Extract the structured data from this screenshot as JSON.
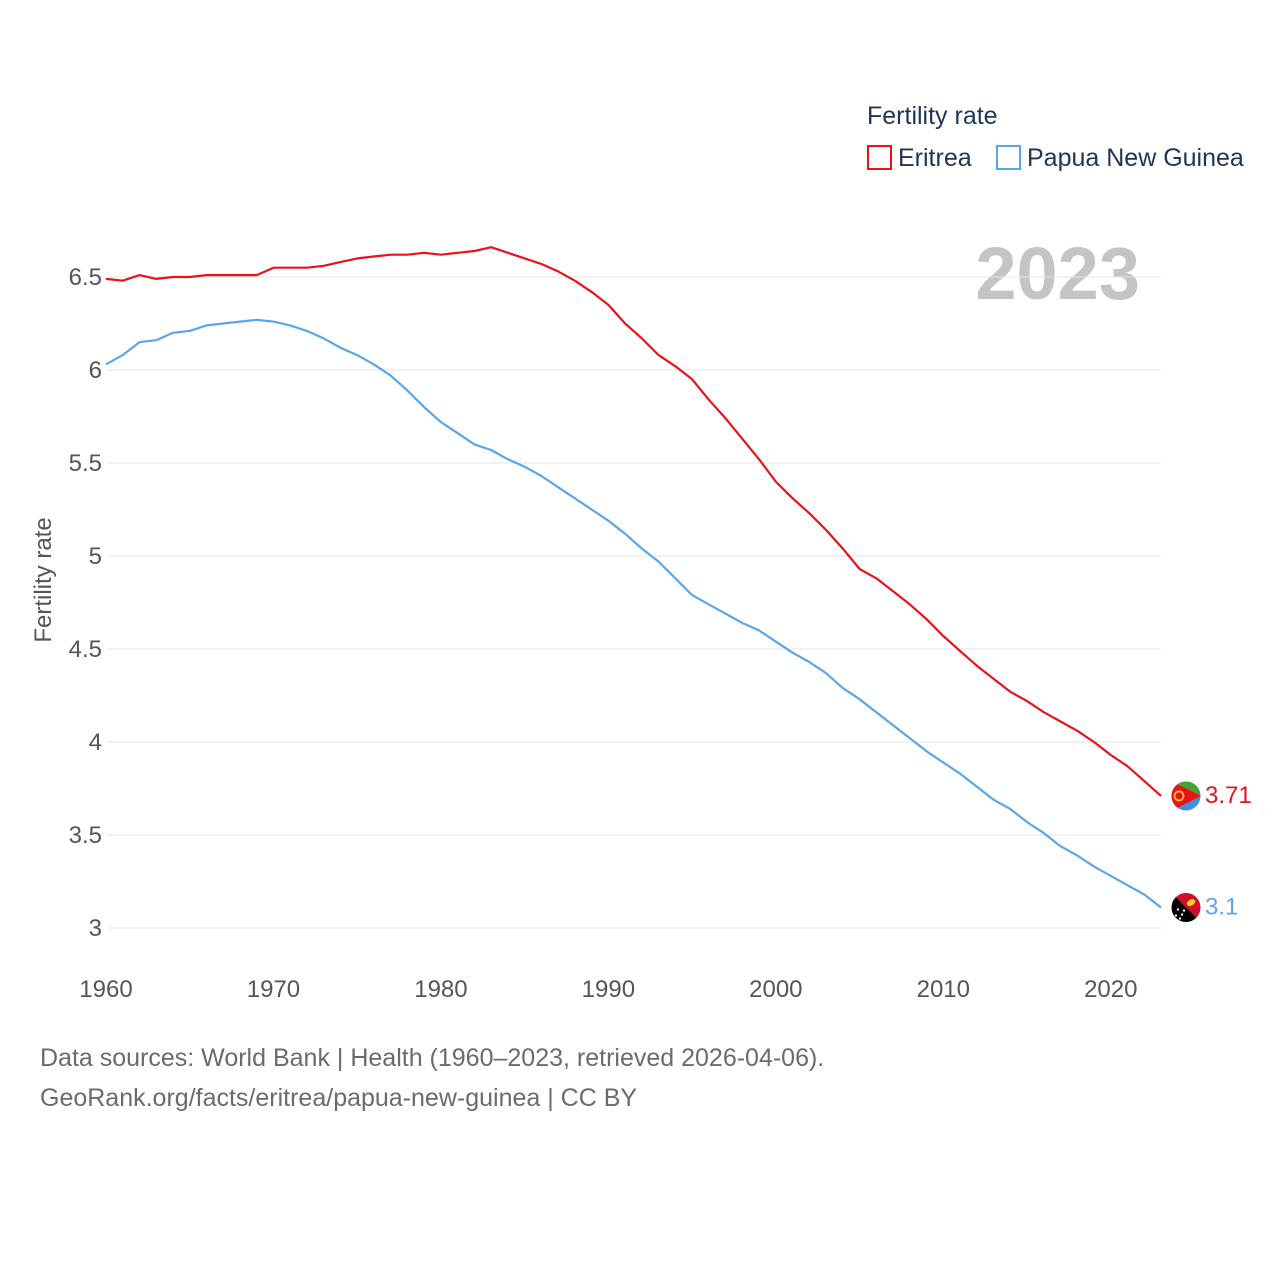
{
  "chart_data": {
    "type": "line",
    "title": "Fertility rate",
    "legend_title": "Fertility rate",
    "ylabel": "Fertility rate",
    "xlabel": "",
    "year_label": "2023",
    "xlim": [
      1960,
      2023
    ],
    "ylim": [
      2.9,
      6.8
    ],
    "x_ticks": [
      1960,
      1970,
      1980,
      1990,
      2000,
      2010,
      2020
    ],
    "y_ticks": [
      3,
      3.5,
      4,
      4.5,
      5,
      5.5,
      6,
      6.5
    ],
    "y_tick_labels": [
      "3",
      "3.5",
      "4",
      "4.5",
      "5",
      "5.5",
      "6",
      "6.5"
    ],
    "x_tick_labels": [
      "1960",
      "1970",
      "1980",
      "1990",
      "2000",
      "2010",
      "2020"
    ],
    "grid": true,
    "legend_position": "top-right",
    "x": [
      1960,
      1961,
      1962,
      1963,
      1964,
      1965,
      1966,
      1967,
      1968,
      1969,
      1970,
      1971,
      1972,
      1973,
      1974,
      1975,
      1976,
      1977,
      1978,
      1979,
      1980,
      1981,
      1982,
      1983,
      1984,
      1985,
      1986,
      1987,
      1988,
      1989,
      1990,
      1991,
      1992,
      1993,
      1994,
      1995,
      1996,
      1997,
      1998,
      1999,
      2000,
      2001,
      2002,
      2003,
      2004,
      2005,
      2006,
      2007,
      2008,
      2009,
      2010,
      2011,
      2012,
      2013,
      2014,
      2015,
      2016,
      2017,
      2018,
      2019,
      2020,
      2021,
      2022,
      2023
    ],
    "series": [
      {
        "name": "Eritrea",
        "color": "#e8121c",
        "end_label": "3.71",
        "values": [
          6.49,
          6.48,
          6.51,
          6.49,
          6.5,
          6.5,
          6.51,
          6.51,
          6.51,
          6.51,
          6.55,
          6.55,
          6.55,
          6.56,
          6.58,
          6.6,
          6.61,
          6.62,
          6.62,
          6.63,
          6.62,
          6.63,
          6.64,
          6.66,
          6.63,
          6.6,
          6.57,
          6.53,
          6.48,
          6.42,
          6.35,
          6.25,
          6.17,
          6.08,
          6.02,
          5.95,
          5.84,
          5.74,
          5.63,
          5.52,
          5.4,
          5.31,
          5.23,
          5.14,
          5.04,
          4.93,
          4.88,
          4.81,
          4.74,
          4.66,
          4.57,
          4.49,
          4.41,
          4.34,
          4.27,
          4.22,
          4.16,
          4.11,
          4.06,
          4.0,
          3.93,
          3.87,
          3.79,
          3.71
        ]
      },
      {
        "name": "Papua New Guinea",
        "color": "#5ba6e8",
        "end_label": "3.1",
        "values": [
          6.03,
          6.08,
          6.15,
          6.16,
          6.2,
          6.21,
          6.24,
          6.25,
          6.26,
          6.27,
          6.26,
          6.24,
          6.21,
          6.17,
          6.12,
          6.08,
          6.03,
          5.97,
          5.89,
          5.8,
          5.72,
          5.66,
          5.6,
          5.57,
          5.52,
          5.48,
          5.43,
          5.37,
          5.31,
          5.25,
          5.19,
          5.12,
          5.04,
          4.97,
          4.88,
          4.79,
          4.74,
          4.69,
          4.64,
          4.6,
          4.54,
          4.48,
          4.43,
          4.37,
          4.29,
          4.23,
          4.16,
          4.09,
          4.02,
          3.95,
          3.89,
          3.83,
          3.76,
          3.69,
          3.64,
          3.57,
          3.51,
          3.44,
          3.39,
          3.33,
          3.28,
          3.23,
          3.18,
          3.11
        ]
      }
    ]
  },
  "flags": {
    "eritrea": {
      "green": "#4aa039",
      "blue": "#418fde",
      "red": "#e8121c",
      "emblem": "#ffc726"
    },
    "papua_new_guinea": {
      "red": "#ce1126",
      "black": "#000000",
      "bird": "#fcd116",
      "stars": "#ffffff"
    }
  },
  "footer": {
    "line1": "Data sources: World Bank | Health (1960–2023, retrieved 2026-04-06).",
    "line2": "GeoRank.org/facts/eritrea/papua-new-guinea | CC BY"
  }
}
